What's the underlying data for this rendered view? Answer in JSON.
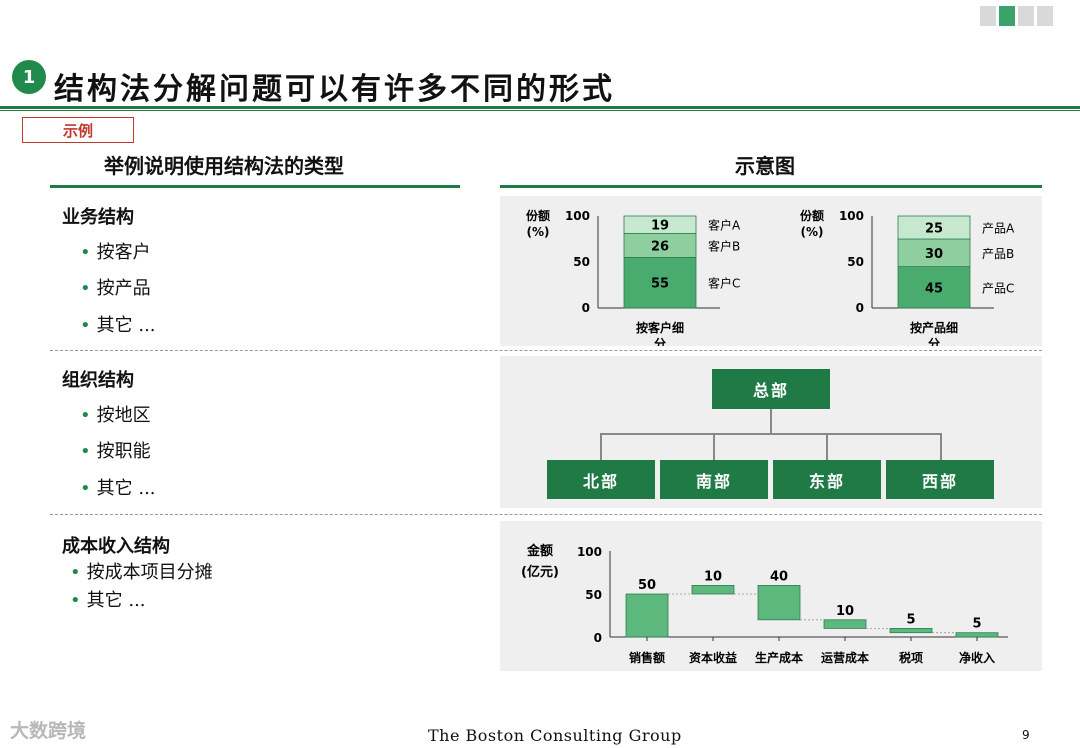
{
  "slide": {
    "number_badge": "1",
    "title": "结构法分解问题可以有许多不同的形式",
    "example_tag": "示例",
    "left_header": "举例说明使用结构法的类型",
    "right_header": "示意图",
    "page_number": "9",
    "footer_brand": "The Boston Consulting Group",
    "watermark": "大数跨境"
  },
  "sections": [
    {
      "title": "业务结构",
      "bullets": [
        "按客户",
        "按产品",
        "其它 ..."
      ]
    },
    {
      "title": "组织结构",
      "bullets": [
        "按地区",
        "按职能",
        "其它 ..."
      ]
    },
    {
      "title": "成本收入结构",
      "bullets": [
        "按成本项目分摊",
        "其它 ..."
      ]
    }
  ],
  "org_chart": {
    "root": "总部",
    "children": [
      "北部",
      "南部",
      "东部",
      "西部"
    ]
  },
  "chart_data": [
    {
      "type": "bar",
      "stacked": true,
      "ylabel": "份额\n(%)",
      "ylim": [
        0,
        100
      ],
      "yticks": [
        "100",
        "50",
        "0"
      ],
      "categories": [
        "按客户细分"
      ],
      "series": [
        {
          "name": "客户C",
          "values": [
            55
          ]
        },
        {
          "name": "客户B",
          "values": [
            26
          ]
        },
        {
          "name": "客户A",
          "values": [
            19
          ]
        }
      ]
    },
    {
      "type": "bar",
      "stacked": true,
      "ylabel": "份额\n(%)",
      "ylim": [
        0,
        100
      ],
      "yticks": [
        "100",
        "50",
        "0"
      ],
      "categories": [
        "按产品细分"
      ],
      "series": [
        {
          "name": "产品C",
          "values": [
            45
          ]
        },
        {
          "name": "产品B",
          "values": [
            30
          ]
        },
        {
          "name": "产品A",
          "values": [
            25
          ]
        }
      ]
    },
    {
      "type": "bar",
      "waterfall": true,
      "ylabel": "金额\n(亿元)",
      "ylim": [
        0,
        100
      ],
      "yticks": [
        "100",
        "50",
        "0"
      ],
      "categories": [
        "销售额",
        "资本收益",
        "生产成本",
        "运营成本",
        "税项",
        "净收入"
      ],
      "values": [
        50,
        10,
        40,
        10,
        5,
        5
      ],
      "bases": [
        0,
        50,
        20,
        10,
        5,
        0
      ]
    }
  ],
  "colors": {
    "dark_green": "#1f7a46",
    "stack_bottom": "#4aab6e",
    "stack_middle": "#8fcf9f",
    "stack_top": "#c6e8cf",
    "waterfall_bar": "#5cb87d",
    "panel_bg": "#efefef"
  }
}
